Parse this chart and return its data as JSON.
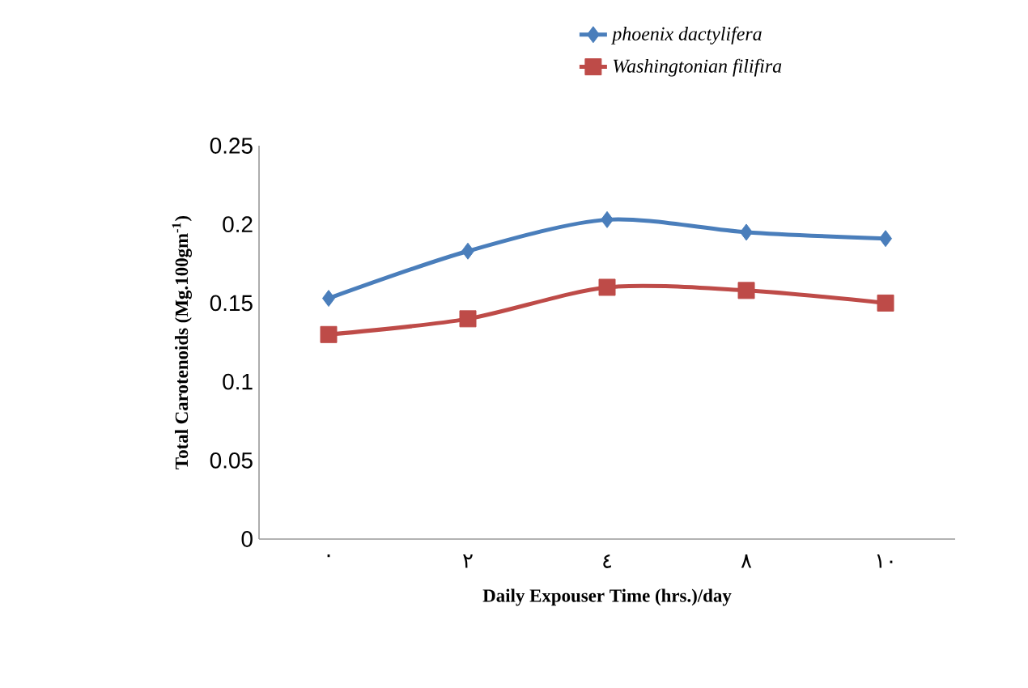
{
  "chart_data": {
    "type": "line",
    "xlabel": "Daily Expouser  Time (hrs.)/day",
    "ylabel": "Total Carotenoids (Mg.100gm$^{-1}$)",
    "categories": [
      "٠",
      "٢",
      "٤",
      "٨",
      "١٠"
    ],
    "series": [
      {
        "name": "phoenix dactylifera",
        "color": "#4a7ebb",
        "marker": "diamond",
        "values": [
          0.153,
          0.183,
          0.203,
          0.195,
          0.191
        ]
      },
      {
        "name": "Washingtonian filifira",
        "color": "#be4b48",
        "marker": "square",
        "values": [
          0.13,
          0.14,
          0.16,
          0.158,
          0.15
        ]
      }
    ],
    "ylim": [
      0,
      0.25
    ],
    "yticks": [
      0,
      0.05,
      0.1,
      0.15,
      0.2,
      0.25
    ],
    "grid": false,
    "legend": "top right"
  }
}
